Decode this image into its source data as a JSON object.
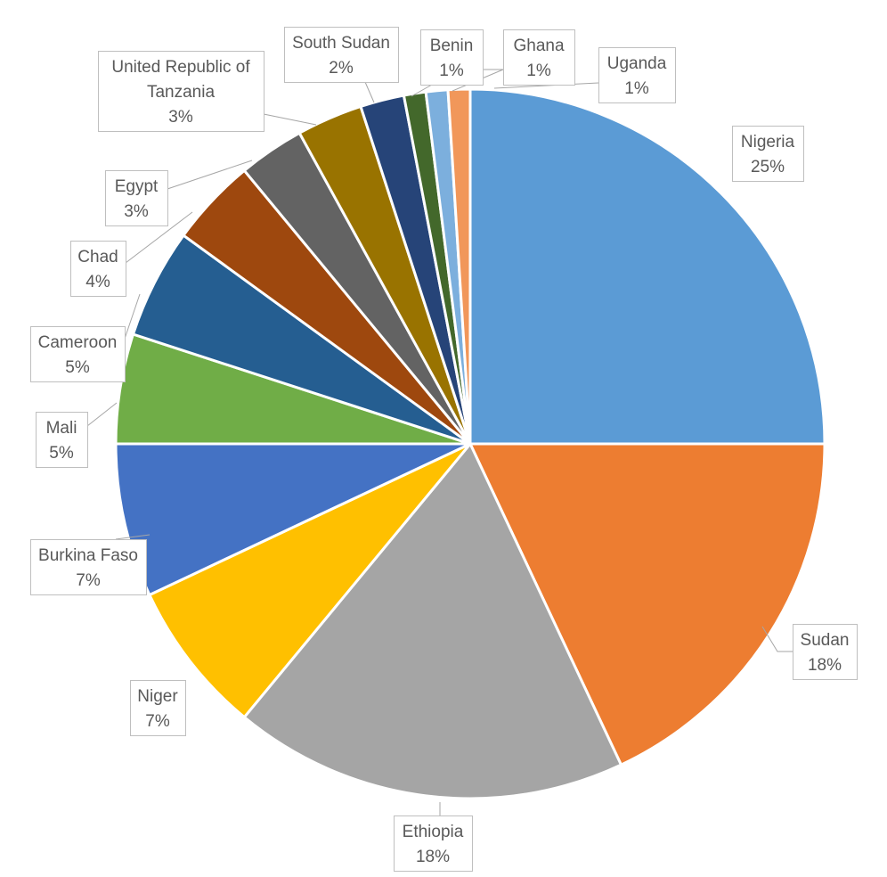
{
  "chart_data": {
    "type": "pie",
    "title": "",
    "start_angle_deg": 0,
    "direction": "clockwise",
    "legend": "none",
    "data_labels": "category-and-percent",
    "slices": [
      {
        "category": "Nigeria",
        "value": 25,
        "label": "25%",
        "color": "#5b9bd5"
      },
      {
        "category": "Sudan",
        "value": 18,
        "label": "18%",
        "color": "#ed7d31"
      },
      {
        "category": "Ethiopia",
        "value": 18,
        "label": "18%",
        "color": "#a5a5a5"
      },
      {
        "category": "Niger",
        "value": 7,
        "label": "7%",
        "color": "#ffc000"
      },
      {
        "category": "Burkina Faso",
        "value": 7,
        "label": "7%",
        "color": "#4472c4"
      },
      {
        "category": "Mali",
        "value": 5,
        "label": "5%",
        "color": "#70ad47"
      },
      {
        "category": "Cameroon",
        "value": 5,
        "label": "5%",
        "color": "#255e91"
      },
      {
        "category": "Chad",
        "value": 4,
        "label": "4%",
        "color": "#9e480e"
      },
      {
        "category": "Egypt",
        "value": 3,
        "label": "3%",
        "color": "#636363"
      },
      {
        "category": "United Republic of Tanzania",
        "value": 3,
        "label": "3%",
        "color": "#997300"
      },
      {
        "category": "South Sudan",
        "value": 2,
        "label": "2%",
        "color": "#264478"
      },
      {
        "category": "Benin",
        "value": 1,
        "label": "1%",
        "color": "#43682b"
      },
      {
        "category": "Ghana",
        "value": 1,
        "label": "1%",
        "color": "#7cafdd"
      },
      {
        "category": "Uganda",
        "value": 1,
        "label": "1%",
        "color": "#f1975a"
      }
    ]
  }
}
